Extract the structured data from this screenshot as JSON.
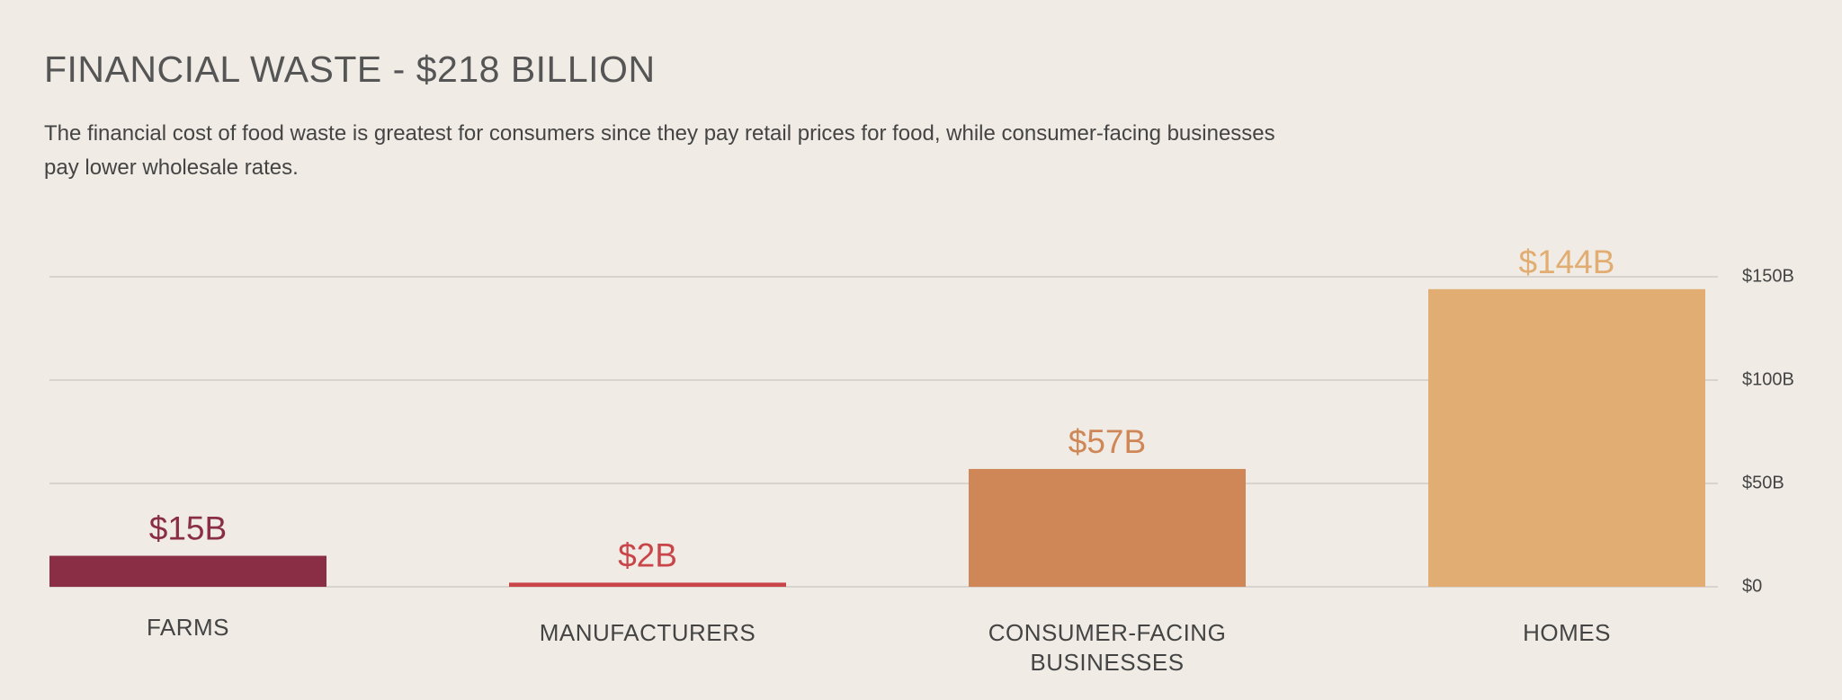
{
  "chart_data": {
    "type": "bar",
    "title": "FINANCIAL WASTE - $218 BILLION",
    "subtitle": "The financial cost of food waste is greatest for consumers since they pay retail prices for food, while consumer-facing businesses pay lower wholesale rates.",
    "categories": [
      "FARMS",
      "MANUFACTURERS",
      "CONSUMER-FACING BUSINESSES",
      "HOMES"
    ],
    "values": [
      15,
      2,
      57,
      144
    ],
    "value_labels": [
      "$15B",
      "$2B",
      "$57B",
      "$144B"
    ],
    "colors": [
      "#8a2e46",
      "#c9454a",
      "#cf8757",
      "#e1ad72"
    ],
    "ylim": [
      0,
      150
    ],
    "yticks": [
      {
        "value": 0,
        "label": "$0"
      },
      {
        "value": 50,
        "label": "$50B"
      },
      {
        "value": 100,
        "label": "$100B"
      },
      {
        "value": 150,
        "label": "$150B"
      }
    ],
    "grid": true
  }
}
